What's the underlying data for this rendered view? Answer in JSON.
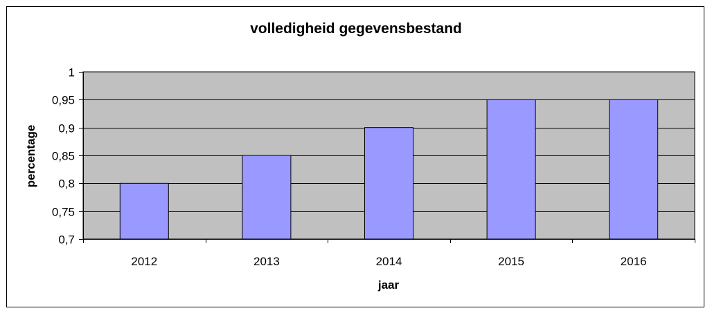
{
  "chart_data": {
    "type": "bar",
    "title": "volledigheid gegevensbestand",
    "xlabel": "jaar",
    "ylabel": "percentage",
    "categories": [
      "2012",
      "2013",
      "2014",
      "2015",
      "2016"
    ],
    "values": [
      0.8,
      0.85,
      0.9,
      0.95,
      0.95
    ],
    "ylim": [
      0.7,
      1
    ],
    "yticks": [
      0.7,
      0.75,
      0.8,
      0.85,
      0.9,
      0.95,
      1
    ],
    "ytick_labels": [
      "0,7",
      "0,75",
      "0,8",
      "0,85",
      "0,9",
      "0,95",
      "1"
    ],
    "grid": true,
    "legend": "none",
    "colors": {
      "bar": "#9999ff",
      "plot_background": "#c0c0c0",
      "gridline": "#000000"
    }
  }
}
